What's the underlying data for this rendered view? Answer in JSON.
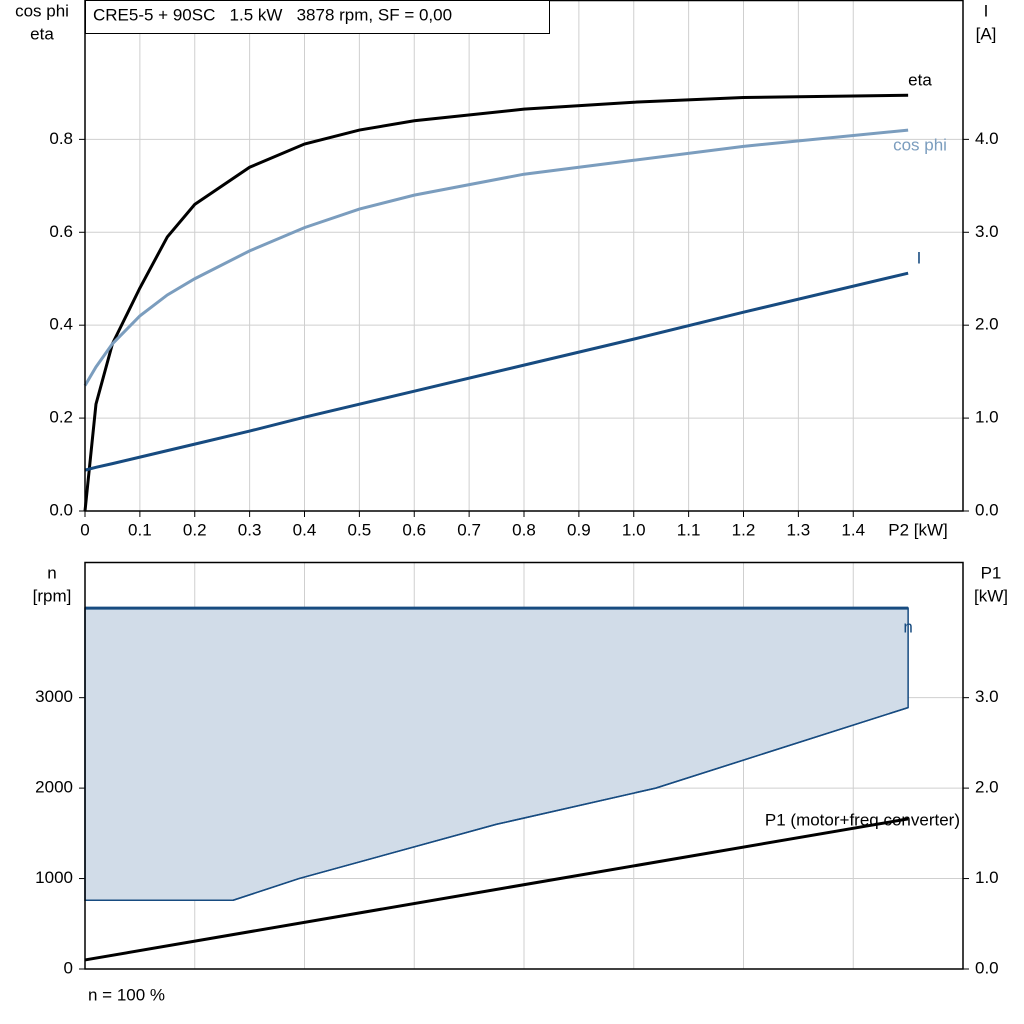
{
  "chart_data": [
    {
      "type": "line",
      "title": "CRE5-5 + 90SC   1.5 kW   3878 rpm, SF = 0,00",
      "y_label": [
        "cos phi",
        "eta"
      ],
      "y2_label": [
        "I",
        "[A]"
      ],
      "x_label": "P2 [kW]",
      "xlim": [
        0,
        1.6
      ],
      "xticks": [
        0,
        0.1,
        0.2,
        0.3,
        0.4,
        0.5,
        0.6,
        0.7,
        0.8,
        0.9,
        {
          "value": 1,
          "label": "1.0"
        },
        1.1,
        1.2,
        1.3,
        1.4
      ],
      "ylim": [
        0,
        1.1
      ],
      "yticks": [
        {
          "value": 0,
          "label": "0.0"
        },
        0.2,
        0.4,
        0.6,
        0.8
      ],
      "y2lim": [
        0,
        5.5
      ],
      "y2ticks": [
        {
          "value": 0,
          "label": "0.0"
        },
        {
          "value": 1,
          "label": "1.0"
        },
        {
          "value": 2,
          "label": "2.0"
        },
        {
          "value": 3,
          "label": "3.0"
        },
        {
          "value": 4,
          "label": "4.0"
        }
      ],
      "grid": true,
      "x": [
        0,
        0.02,
        0.05,
        0.1,
        0.15,
        0.2,
        0.3,
        0.4,
        0.5,
        0.6,
        0.8,
        1.0,
        1.2,
        1.5
      ],
      "series": [
        {
          "name": "eta",
          "color": "#000000",
          "values": [
            0,
            0.23,
            0.36,
            0.48,
            0.59,
            0.66,
            0.74,
            0.79,
            0.82,
            0.84,
            0.865,
            0.88,
            0.89,
            0.895
          ]
        },
        {
          "name": "cos phi",
          "color": "#7b9dbe",
          "values": [
            0.27,
            0.31,
            0.36,
            0.42,
            0.465,
            0.5,
            0.56,
            0.61,
            0.65,
            0.68,
            0.725,
            0.755,
            0.785,
            0.82
          ]
        },
        {
          "name": "I",
          "color": "#174b80",
          "axis": "y2",
          "values": [
            0.44,
            0.47,
            0.51,
            0.58,
            0.65,
            0.72,
            0.86,
            1.01,
            1.15,
            1.29,
            1.57,
            1.85,
            2.14,
            2.56
          ]
        }
      ]
    },
    {
      "type": "area",
      "y_label": [
        "n",
        "[rpm]"
      ],
      "y2_label": [
        "P1",
        "[kW]"
      ],
      "note": "n = 100 %",
      "xlim": [
        0,
        1.6
      ],
      "xgrid": [
        0.2,
        0.4,
        0.6,
        0.8,
        1.0,
        1.2,
        1.4
      ],
      "ylim": [
        0,
        4500
      ],
      "yticks": [
        0,
        1000,
        2000,
        3000
      ],
      "y2lim": [
        0,
        4.5
      ],
      "y2ticks": [
        {
          "value": 0,
          "label": "0.0"
        },
        {
          "value": 1,
          "label": "1.0"
        },
        {
          "value": 2,
          "label": "2.0"
        },
        {
          "value": 3,
          "label": "3.0"
        }
      ],
      "grid": true,
      "series": [
        {
          "name": "n",
          "color": "#174b80",
          "fill": "#d1dce8",
          "x": [
            0,
            0.27,
            0.39,
            0.75,
            1.04,
            1.5
          ],
          "values": [
            3990,
            3990,
            3990,
            3990,
            3990,
            3990
          ],
          "lower": [
            760,
            760,
            1000,
            1600,
            2000,
            2890
          ]
        },
        {
          "name": "P1 (motor+freq converter)",
          "color": "#000000",
          "axis": "y2",
          "x": [
            0,
            1.5
          ],
          "values": [
            0.1,
            1.66
          ]
        }
      ]
    }
  ]
}
